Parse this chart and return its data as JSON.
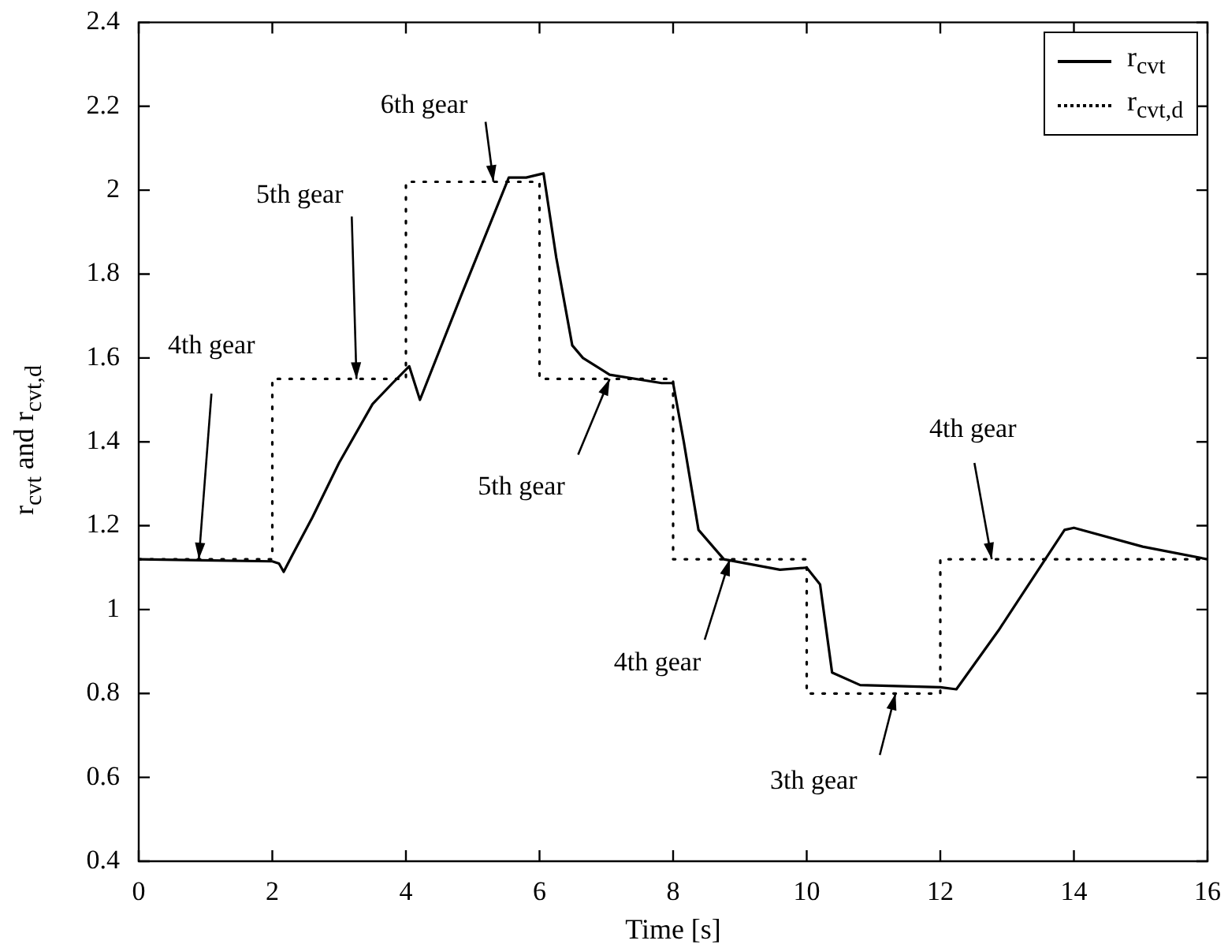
{
  "chart_data": {
    "type": "line",
    "xlabel": "Time [s]",
    "ylabel": "r$_{cvt}$ and r$_{cvt,d}$",
    "xlim": [
      0,
      16
    ],
    "xticks": [
      0,
      2,
      4,
      6,
      8,
      10,
      12,
      14,
      16
    ],
    "ylim": [
      0.4,
      2.4
    ],
    "yticks": [
      0.4,
      0.6,
      0.8,
      1,
      1.2,
      1.4,
      1.6,
      1.8,
      2,
      2.2,
      2.4
    ],
    "grid": false,
    "legend": "top right",
    "marker": "none",
    "series": [
      {
        "name": "r$_{cvt}$",
        "color": "#000000",
        "line_style": "solid",
        "x": [
          0,
          2,
          2.1,
          2.17,
          2.3,
          2.6,
          3,
          3.5,
          3.8,
          4.05,
          4.21,
          4.83,
          5.54,
          5.8,
          6.06,
          6.25,
          6.49,
          6.65,
          7.05,
          7.83,
          8,
          8.16,
          8.38,
          8.76,
          9.6,
          10,
          10.2,
          10.38,
          10.8,
          12,
          12.24,
          12.87,
          13.86,
          14,
          15.03,
          16
        ],
        "values": [
          1.12,
          1.115,
          1.11,
          1.09,
          1.13,
          1.22,
          1.35,
          1.49,
          1.54,
          1.58,
          1.5,
          1.75,
          2.03,
          2.03,
          2.04,
          1.84,
          1.63,
          1.6,
          1.56,
          1.54,
          1.54,
          1.4,
          1.19,
          1.12,
          1.095,
          1.1,
          1.06,
          0.85,
          0.82,
          0.815,
          0.81,
          0.95,
          1.19,
          1.195,
          1.15,
          1.12
        ]
      },
      {
        "name": "r$_{cvt,d}$",
        "color": "#000000",
        "line_style": "dotted",
        "x": [
          0,
          2,
          2,
          4,
          4,
          6,
          6,
          8,
          8,
          10,
          10,
          12,
          12,
          16
        ],
        "values": [
          1.12,
          1.12,
          1.55,
          1.55,
          2.02,
          2.02,
          1.55,
          1.55,
          1.12,
          1.12,
          0.8,
          0.8,
          1.12,
          1.12
        ]
      }
    ],
    "annotations": [
      {
        "text": "4th gear",
        "x": 0.9,
        "y": 1.12
      },
      {
        "text": "5th gear",
        "x": 3.26,
        "y": 1.55
      },
      {
        "text": "6th gear",
        "x": 5.31,
        "y": 2.02
      },
      {
        "text": "5th gear",
        "x": 7.05,
        "y": 1.55
      },
      {
        "text": "4th gear",
        "x": 8.85,
        "y": 1.12
      },
      {
        "text": "3th gear",
        "x": 11.33,
        "y": 0.8
      },
      {
        "text": "4th gear",
        "x": 12.77,
        "y": 1.12
      }
    ]
  }
}
